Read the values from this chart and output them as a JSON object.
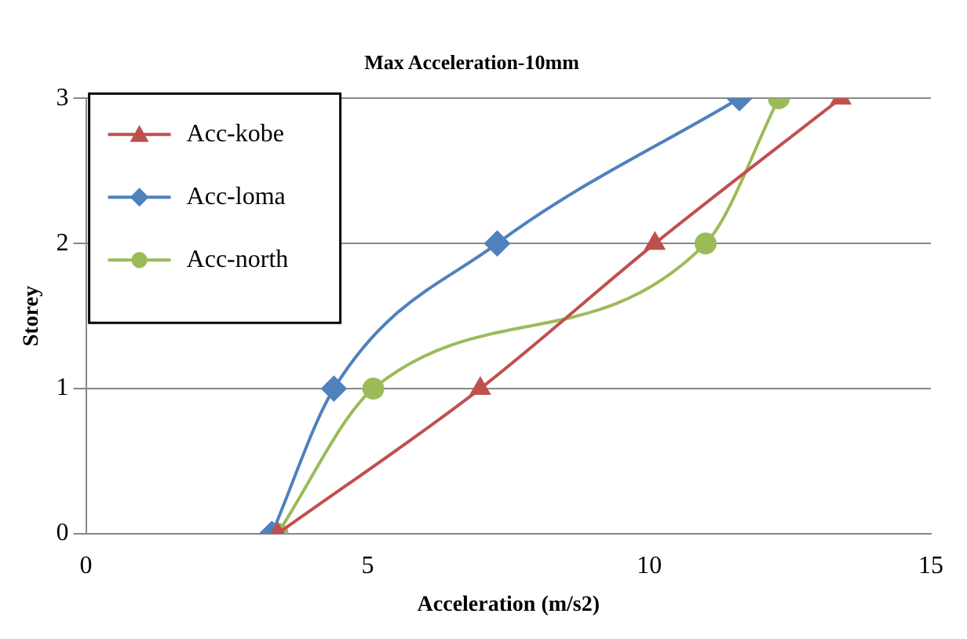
{
  "chart_data": {
    "type": "line",
    "title": "Max Acceleration-10mm",
    "xlabel": "Acceleration (m/s2)",
    "ylabel": "Storey",
    "xlim": [
      0,
      15
    ],
    "xticks": [
      0,
      5,
      10,
      15
    ],
    "ylim": [
      0,
      3
    ],
    "yticks": [
      0,
      1,
      2,
      3
    ],
    "grid": "y",
    "legend": "top left",
    "line_style": "solid",
    "series": [
      {
        "name": "Acc-kobe",
        "color": "#c0504d",
        "marker": "triangle",
        "x": [
          3.4,
          7.0,
          10.1,
          13.4
        ],
        "values": [
          0,
          1,
          2,
          3
        ]
      },
      {
        "name": "Acc-loma",
        "color": "#4f81bd",
        "marker": "diamond",
        "x": [
          3.3,
          4.4,
          7.3,
          11.6
        ],
        "values": [
          0,
          1,
          2,
          3
        ]
      },
      {
        "name": "Acc-north",
        "color": "#9bbb59",
        "marker": "circle",
        "x": [
          3.4,
          5.1,
          11.0,
          12.3
        ],
        "values": [
          0,
          1,
          2,
          3
        ]
      }
    ]
  }
}
